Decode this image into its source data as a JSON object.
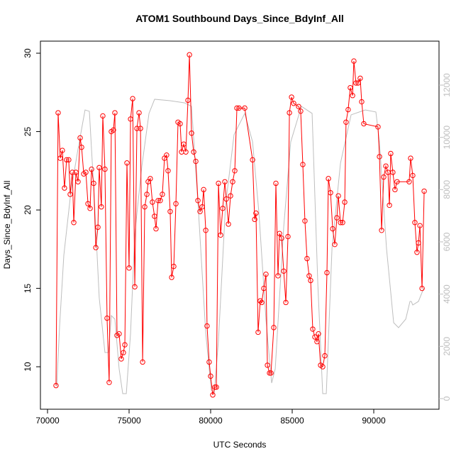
{
  "chart_data": {
    "type": "line",
    "title": "ATOM1 Southbound Days_Since_BdyInf_All",
    "xlabel": "UTC Seconds",
    "ylabel": "Days_Since_BdyInf_All",
    "xlim": [
      69565,
      94000
    ],
    "xticks": [
      70000,
      75000,
      80000,
      85000,
      90000
    ],
    "ylim": [
      7.29,
      30.77
    ],
    "yticks": [
      10,
      15,
      20,
      25,
      30
    ],
    "y2lim": [
      -407,
      13683
    ],
    "y2ticks": [
      0,
      2000,
      4000,
      6000,
      8000,
      10000,
      12000
    ],
    "series": [
      {
        "color": "#ff0000",
        "markers": true,
        "x": [
          70520,
          70650,
          70780,
          70910,
          71040,
          71170,
          71300,
          71390,
          71520,
          71610,
          71740,
          71870,
          72000,
          72090,
          72220,
          72350,
          72480,
          72610,
          72700,
          72830,
          72960,
          73090,
          73170,
          73300,
          73390,
          73520,
          73650,
          73780,
          73910,
          74040,
          74130,
          74260,
          74390,
          74520,
          74650,
          74740,
          74870,
          75000,
          75090,
          75220,
          75350,
          75480,
          75610,
          75700,
          75830,
          75960,
          76090,
          76170,
          76300,
          76430,
          76560,
          76650,
          76780,
          76910,
          77040,
          77170,
          77300,
          77390,
          77520,
          77610,
          77740,
          77870,
          78000,
          78130,
          78220,
          78350,
          78480,
          78610,
          78700,
          78830,
          78960,
          79090,
          79220,
          79350,
          79480,
          79570,
          79700,
          79780,
          79910,
          80000,
          80130,
          80260,
          80350,
          80480,
          80610,
          80740,
          80870,
          80960,
          81090,
          81220,
          81350,
          81480,
          81610,
          81740,
          82090,
          82570,
          82700,
          82780,
          82910,
          83040,
          83130,
          83260,
          83390,
          83480,
          83610,
          83700,
          83870,
          84000,
          84130,
          84220,
          84350,
          84480,
          84610,
          84740,
          84830,
          84960,
          85090,
          85390,
          85520,
          85650,
          85780,
          85910,
          86040,
          86130,
          86260,
          86390,
          86520,
          86610,
          86740,
          86870,
          87000,
          87130,
          87220,
          87350,
          87480,
          87610,
          87740,
          87830,
          87960,
          88090,
          88220,
          88300,
          88430,
          88560,
          88700,
          88780,
          88910,
          89040,
          89170,
          89260,
          89390,
          90260,
          90350,
          90480,
          90610,
          90740,
          90870,
          90960,
          91040,
          91170,
          91300,
          91430,
          92170,
          92260,
          92390,
          92520,
          92650,
          92740,
          92830,
          92960,
          93090
        ],
        "values": [
          8.8,
          26.2,
          23.3,
          23.8,
          21.4,
          23.2,
          23.2,
          21.0,
          22.4,
          19.2,
          22.4,
          21.8,
          24.6,
          24.0,
          22.3,
          22.4,
          20.4,
          20.1,
          22.6,
          21.7,
          17.6,
          18.9,
          22.7,
          20.2,
          26.0,
          22.6,
          13.1,
          9.0,
          25.0,
          25.1,
          26.2,
          12.0,
          12.1,
          10.5,
          10.9,
          11.4,
          23.0,
          16.3,
          25.8,
          27.1,
          15.1,
          25.2,
          26.2,
          25.2,
          10.3,
          20.2,
          21.0,
          21.8,
          22.0,
          20.5,
          19.6,
          18.8,
          20.6,
          20.6,
          21.0,
          23.3,
          23.5,
          22.5,
          19.9,
          15.7,
          16.4,
          20.4,
          25.6,
          25.5,
          23.7,
          24.2,
          23.7,
          27.0,
          29.9,
          24.9,
          23.7,
          23.1,
          20.6,
          19.9,
          20.2,
          21.3,
          18.7,
          12.6,
          10.3,
          9.4,
          8.2,
          8.7,
          8.7,
          21.7,
          18.4,
          20.1,
          21.8,
          20.7,
          19.1,
          20.9,
          21.8,
          22.5,
          26.5,
          26.5,
          26.5,
          23.2,
          19.4,
          19.8,
          12.2,
          14.2,
          14.1,
          15.0,
          15.9,
          10.1,
          9.6,
          9.6,
          12.5,
          21.7,
          15.8,
          18.5,
          18.2,
          16.1,
          14.1,
          18.3,
          26.2,
          27.2,
          26.8,
          26.6,
          26.3,
          22.9,
          19.3,
          16.9,
          15.8,
          15.5,
          12.4,
          11.9,
          11.6,
          12.1,
          10.1,
          10.0,
          10.7,
          16.0,
          22.0,
          21.1,
          18.8,
          17.8,
          19.5,
          20.9,
          19.2,
          19.2,
          20.5,
          25.6,
          26.4,
          27.8,
          27.3,
          29.5,
          28.1,
          28.1,
          28.4,
          26.9,
          25.5,
          25.3,
          23.4,
          18.7,
          22.1,
          22.8,
          22.4,
          20.3,
          23.6,
          22.4,
          21.3,
          21.8,
          21.8,
          23.3,
          22.2,
          19.2,
          17.3,
          17.9,
          19.0,
          15.0,
          21.2
        ]
      },
      {
        "color": "#bebebe",
        "axis": "y2",
        "markers": false,
        "x": [
          70565,
          70740,
          71000,
          71435,
          71870,
          72300,
          72565,
          72870,
          73170,
          73520,
          73740,
          73910,
          74130,
          74390,
          74610,
          74830,
          75090,
          75350,
          75780,
          76220,
          76565,
          77520,
          78390,
          78830,
          79260,
          79700,
          80040,
          80220,
          80480,
          80910,
          81435,
          82090,
          82570,
          82960,
          83390,
          83740,
          83960,
          84480,
          84910,
          85565,
          86220,
          86570,
          86870,
          87090,
          87440,
          87960,
          88610,
          89480,
          90130,
          90350,
          90780,
          91220,
          91520,
          91960,
          92220,
          92300,
          92390,
          92740,
          93090
        ],
        "values": [
          460,
          2770,
          5485,
          7930,
          9557,
          11050,
          10997,
          7657,
          3855,
          1765,
          1765,
          3177,
          3041,
          1140,
          190,
          190,
          2498,
          6299,
          8879,
          10915,
          11458,
          11404,
          11322,
          11187,
          7114,
          2498,
          326,
          190,
          2226,
          7386,
          10101,
          10915,
          9829,
          7114,
          3041,
          597,
          1140,
          6571,
          9829,
          11187,
          10915,
          4399,
          190,
          190,
          5756,
          9014,
          10861,
          11050,
          10970,
          9829,
          5756,
          2905,
          2715,
          3041,
          3720,
          3720,
          3584,
          3720,
          4263
        ]
      }
    ]
  }
}
